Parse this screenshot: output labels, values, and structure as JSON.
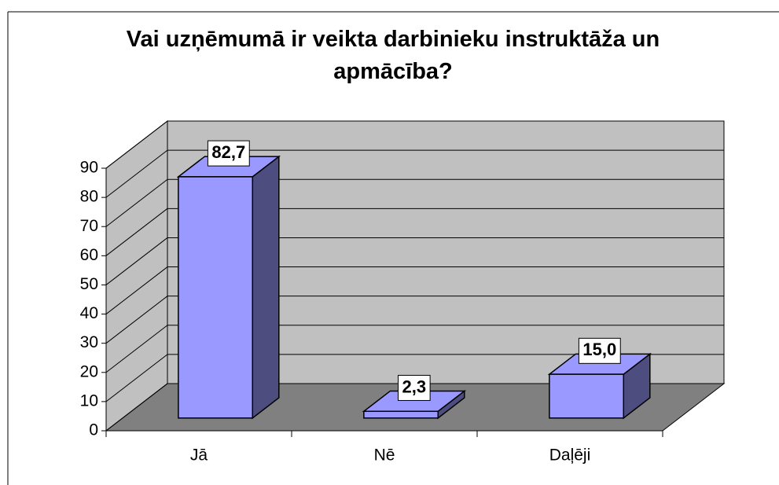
{
  "chart_data": {
    "type": "bar3d",
    "title": "Vai uzņēmumā ir veikta darbinieku instruktāža un apmācība?",
    "categories": [
      "Jā",
      "Nē",
      "Daļēji"
    ],
    "values": [
      82.7,
      2.3,
      15.0
    ],
    "value_labels": [
      "82,7",
      "2,3",
      "15,0"
    ],
    "color": "#9999ff",
    "ylim": [
      0,
      90
    ],
    "yticks": [
      0,
      10,
      20,
      30,
      40,
      50,
      60,
      70,
      80,
      90
    ],
    "grid": true
  }
}
